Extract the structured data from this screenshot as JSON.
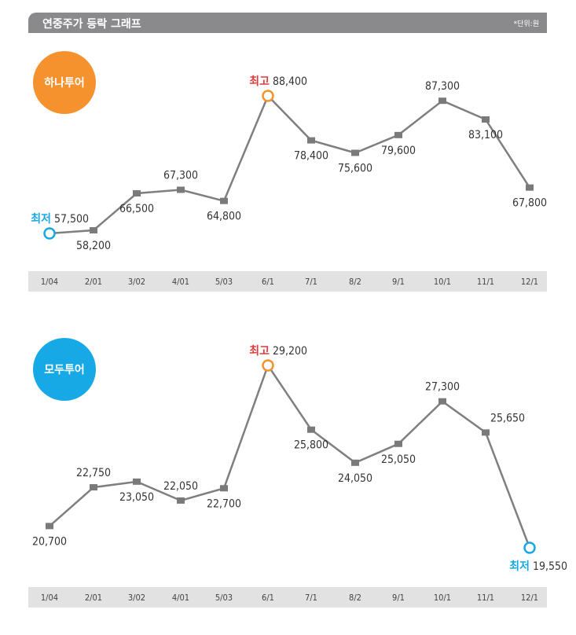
{
  "header": {
    "title": "연중주가 등락 그래프",
    "unit": "*단위:원"
  },
  "colors": {
    "orange": "#f5922e",
    "blue": "#17a9e6",
    "red": "#e23b3b",
    "line": "#7f7f7f",
    "axis_band": "#e2e2e2"
  },
  "chart_data": [
    {
      "type": "line",
      "label": "하나투어",
      "badge_color": "#f5922e",
      "categories": [
        "1/04",
        "2/01",
        "3/02",
        "4/01",
        "5/03",
        "6/1",
        "7/1",
        "8/2",
        "9/1",
        "10/1",
        "11/1",
        "12/1"
      ],
      "values": [
        57500,
        58200,
        66500,
        67300,
        64800,
        88400,
        78400,
        75600,
        79600,
        87300,
        83100,
        67800
      ],
      "value_labels": [
        "57,500",
        "58,200",
        "66,500",
        "67,300",
        "64,800",
        "88,400",
        "78,400",
        "75,600",
        "79,600",
        "87,300",
        "83,100",
        "67,800"
      ],
      "label_pos": [
        "above-right",
        "below",
        "below",
        "above",
        "below",
        "above-right",
        "below",
        "below",
        "below",
        "above",
        "below",
        "below"
      ],
      "high": {
        "index": 5,
        "label": "최고",
        "color": "#f5922e"
      },
      "low": {
        "index": 0,
        "label": "최저",
        "color": "#17a9e6"
      }
    },
    {
      "type": "line",
      "label": "모두투어",
      "badge_color": "#17a9e6",
      "categories": [
        "1/04",
        "2/01",
        "3/02",
        "4/01",
        "5/03",
        "6/1",
        "7/1",
        "8/2",
        "9/1",
        "10/1",
        "11/1",
        "12/1"
      ],
      "values": [
        20700,
        22750,
        23050,
        22050,
        22700,
        29200,
        25800,
        24050,
        25050,
        27300,
        25650,
        19550
      ],
      "value_labels": [
        "20,700",
        "22,750",
        "23,050",
        "22,050",
        "22,700",
        "29,200",
        "25,800",
        "24,050",
        "25,050",
        "27,300",
        "25,650",
        "19,550"
      ],
      "label_pos": [
        "below",
        "above",
        "below",
        "above",
        "below",
        "above-right",
        "below",
        "below",
        "below",
        "above",
        "above-right",
        "below-right"
      ],
      "high": {
        "index": 5,
        "label": "최고",
        "color": "#f5922e"
      },
      "low": {
        "index": 11,
        "label": "최저",
        "color": "#17a9e6"
      }
    }
  ]
}
